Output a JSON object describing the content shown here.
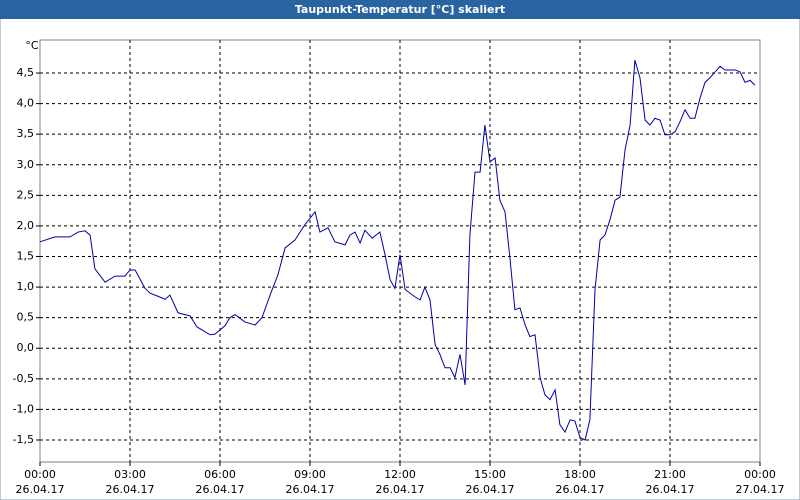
{
  "chart_data": {
    "type": "line",
    "title": "Taupunkt-Temperatur [°C] skaliert",
    "ylabel": "°C",
    "xlim": [
      0,
      24
    ],
    "xticks": [
      {
        "value": 0,
        "label": "00:00"
      },
      {
        "value": 3,
        "label": "03:00"
      },
      {
        "value": 6,
        "label": "06:00"
      },
      {
        "value": 9,
        "label": "09:00"
      },
      {
        "value": 12,
        "label": "12:00"
      },
      {
        "value": 15,
        "label": "15:00"
      },
      {
        "value": 18,
        "label": "18:00"
      },
      {
        "value": 21,
        "label": "21:00"
      },
      {
        "value": 24,
        "label": "00:00"
      }
    ],
    "xtick_dates": [
      "26.04.17",
      "26.04.17",
      "26.04.17",
      "26.04.17",
      "26.04.17",
      "26.04.17",
      "26.04.17",
      "26.04.17",
      "27.04.17"
    ],
    "ylim": [
      -1.86,
      5.04
    ],
    "yticks": [
      {
        "value": -1.5,
        "label": "-1,5"
      },
      {
        "value": -1,
        "label": "-1,0"
      },
      {
        "value": -0.5,
        "label": "-0,5"
      },
      {
        "value": 0,
        "label": "0,0"
      },
      {
        "value": 0.5,
        "label": "0,5"
      },
      {
        "value": 1,
        "label": "1,0"
      },
      {
        "value": 1.5,
        "label": "1,5"
      },
      {
        "value": 2,
        "label": "2,0"
      },
      {
        "value": 2.5,
        "label": "2,5"
      },
      {
        "value": 3,
        "label": "3,0"
      },
      {
        "value": 3.5,
        "label": "3,5"
      },
      {
        "value": 4,
        "label": "4,0"
      },
      {
        "value": 4.5,
        "label": "4,5"
      }
    ],
    "grid": true,
    "x": [
      0,
      0.5,
      1,
      1.27,
      1.5,
      1.67,
      1.83,
      2.17,
      2.5,
      2.83,
      3,
      3.17,
      3.5,
      3.67,
      3.93,
      4.17,
      4.33,
      4.6,
      4.83,
      5,
      5.23,
      5.67,
      5.83,
      6.17,
      6.33,
      6.5,
      6.83,
      7.17,
      7.4,
      7.67,
      7.93,
      8.17,
      8.5,
      8.67,
      8.83,
      9.17,
      9.33,
      9.6,
      9.83,
      10.17,
      10.33,
      10.5,
      10.67,
      10.83,
      11.07,
      11.33,
      11.5,
      11.67,
      11.83,
      12,
      12.17,
      12.5,
      12.67,
      12.83,
      13,
      13.17,
      13.33,
      13.5,
      13.67,
      13.83,
      14,
      14.17,
      14.33,
      14.5,
      14.67,
      14.83,
      15,
      15.17,
      15.33,
      15.5,
      15.67,
      15.83,
      16,
      16.17,
      16.33,
      16.5,
      16.67,
      16.83,
      17,
      17.17,
      17.33,
      17.5,
      17.67,
      17.83,
      18,
      18.17,
      18.33,
      18.5,
      18.67,
      18.83,
      19,
      19.17,
      19.33,
      19.5,
      19.67,
      19.83,
      20,
      20.17,
      20.33,
      20.5,
      20.67,
      20.83,
      21,
      21.17,
      21.33,
      21.5,
      21.67,
      21.83,
      22,
      22.17,
      22.33,
      22.67,
      22.83,
      23.17,
      23.33,
      23.5,
      23.67,
      23.83
    ],
    "series": [
      {
        "name": "Taupunkt-Temperatur",
        "color": "#0000a8",
        "values": [
          1.74,
          1.82,
          1.82,
          1.9,
          1.92,
          1.85,
          1.3,
          1.08,
          1.18,
          1.18,
          1.28,
          1.28,
          0.98,
          0.9,
          0.85,
          0.8,
          0.87,
          0.58,
          0.55,
          0.53,
          0.35,
          0.22,
          0.23,
          0.37,
          0.5,
          0.55,
          0.43,
          0.38,
          0.5,
          0.87,
          1.2,
          1.64,
          1.77,
          1.9,
          2.02,
          2.23,
          1.9,
          1.97,
          1.74,
          1.69,
          1.85,
          1.9,
          1.72,
          1.93,
          1.8,
          1.9,
          1.53,
          1.12,
          0.98,
          1.53,
          0.96,
          0.84,
          0.79,
          1.0,
          0.79,
          0.06,
          -0.1,
          -0.32,
          -0.32,
          -0.48,
          -0.1,
          -0.6,
          1.85,
          2.88,
          2.88,
          3.65,
          3.05,
          3.11,
          2.42,
          2.23,
          1.45,
          0.63,
          0.66,
          0.38,
          0.19,
          0.22,
          -0.48,
          -0.76,
          -0.84,
          -0.68,
          -1.25,
          -1.37,
          -1.17,
          -1.19,
          -1.46,
          -1.5,
          -1.17,
          0.96,
          1.77,
          1.85,
          2.1,
          2.42,
          2.47,
          3.24,
          3.65,
          4.71,
          4.42,
          3.73,
          3.65,
          3.76,
          3.73,
          3.49,
          3.49,
          3.54,
          3.7,
          3.9,
          3.76,
          3.76,
          4.09,
          4.35,
          4.42,
          4.61,
          4.55,
          4.55,
          4.52,
          4.35,
          4.38,
          4.3
        ]
      }
    ]
  }
}
